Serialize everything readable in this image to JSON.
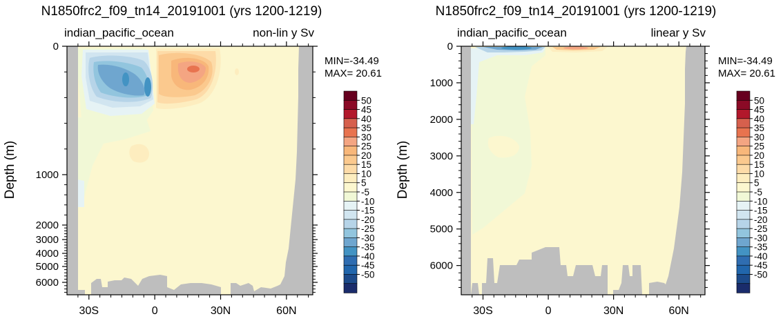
{
  "chart_data": [
    {
      "type": "heatmap",
      "title": "N1850frc2_f09_tn14_20191001 (yrs 1200-1219)",
      "left_subtitle": "indian_pacific_ocean",
      "right_subtitle": "non-lin y Sv",
      "xlabel": "",
      "ylabel": "Depth (m)",
      "y_scale": "non-linear",
      "x_ticks": [
        "30S",
        "0",
        "30N",
        "60N"
      ],
      "x_tick_values": [
        -30,
        0,
        30,
        60
      ],
      "y_ticks": [
        "0",
        "1000",
        "2000",
        "3000",
        "4000",
        "5000",
        "6000"
      ],
      "y_tick_values": [
        0,
        1000,
        2000,
        3000,
        4000,
        5000,
        6000
      ],
      "xlim": [
        -40,
        72
      ],
      "ylim": [
        6750,
        0
      ],
      "min_label": "MIN=-34.49",
      "max_label": "MAX= 20.61",
      "min": -34.49,
      "max": 20.61,
      "units": "Sv"
    },
    {
      "type": "heatmap",
      "title": "N1850frc2_f09_tn14_20191001 (yrs 1200-1219)",
      "left_subtitle": "indian_pacific_ocean",
      "right_subtitle": "linear y Sv",
      "xlabel": "",
      "ylabel": "Depth (m)",
      "y_scale": "linear",
      "x_ticks": [
        "30S",
        "0",
        "30N",
        "60N"
      ],
      "x_tick_values": [
        -30,
        0,
        30,
        60
      ],
      "y_ticks": [
        "0",
        "1000",
        "2000",
        "3000",
        "4000",
        "5000",
        "6000"
      ],
      "y_tick_values": [
        0,
        1000,
        2000,
        3000,
        4000,
        5000,
        6000
      ],
      "xlim": [
        -40,
        72
      ],
      "ylim": [
        6800,
        0
      ],
      "min_label": "MIN=-34.49",
      "max_label": "MAX= 20.61",
      "min": -34.49,
      "max": 20.61,
      "units": "Sv"
    }
  ],
  "colorbar": {
    "labels": [
      "50",
      "45",
      "40",
      "35",
      "30",
      "25",
      "20",
      "15",
      "10",
      "5",
      "-5",
      "-10",
      "-15",
      "-20",
      "-25",
      "-30",
      "-35",
      "-40",
      "-45",
      "-50"
    ],
    "colors": [
      "#67001f",
      "#8b0a26",
      "#b2182b",
      "#d6604d",
      "#e8734f",
      "#f4a582",
      "#f8b77a",
      "#fbc98e",
      "#fddba8",
      "#fdedbf",
      "#fcf7cf",
      "#f1f8d6",
      "#e6f3f5",
      "#d1e5f0",
      "#b6d4e8",
      "#92c5de",
      "#6fa6cf",
      "#4393c3",
      "#2f6db1",
      "#2166ac",
      "#1c4a8a",
      "#1a2c6b"
    ]
  }
}
